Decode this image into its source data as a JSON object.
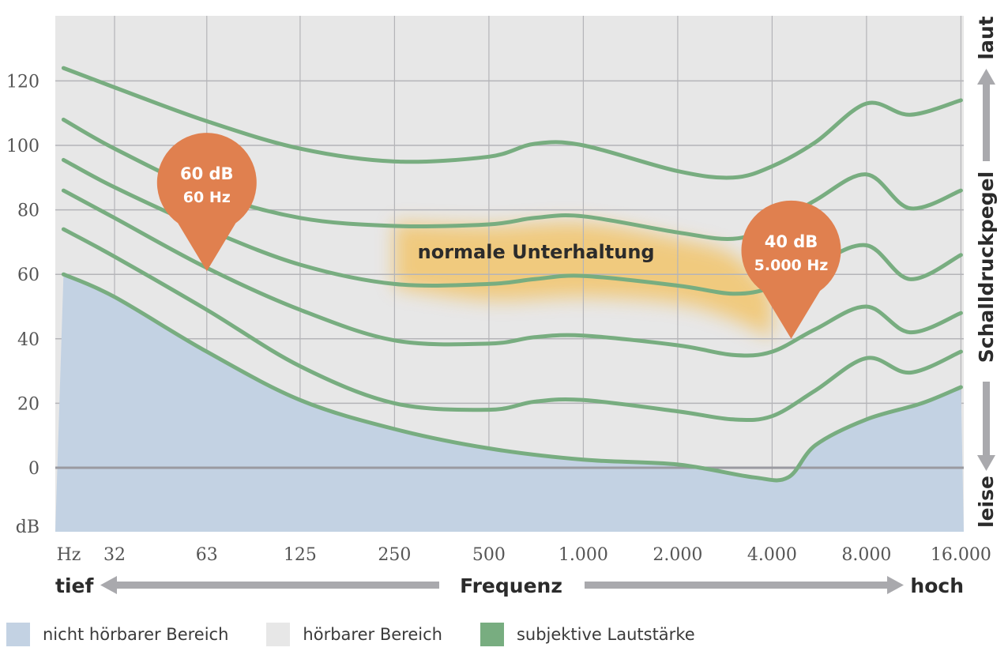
{
  "chart_data": {
    "type": "line",
    "x_scale": "log2",
    "x_ticks": [
      32,
      63,
      125,
      250,
      500,
      1000,
      2000,
      4000,
      8000,
      16000
    ],
    "x_tick_labels": [
      "32",
      "63",
      "125",
      "250",
      "500",
      "1.000",
      "2.000",
      "4.000",
      "8.000",
      "16.000"
    ],
    "x_unit": "Hz",
    "y_unit": "dB",
    "y_ticks": [
      0,
      20,
      40,
      60,
      80,
      100,
      120
    ],
    "y_tick_labels": [
      "0",
      "20",
      "40",
      "60",
      "80",
      "100",
      "120"
    ],
    "ylim": [
      -20,
      140
    ],
    "xlim": [
      22,
      16000
    ],
    "xlabel": "Frequenz",
    "x_left_label": "tief",
    "x_right_label": "hoch",
    "ylabel": "Schalldruckpegel",
    "y_top_label": "laut",
    "y_bottom_label": "leise",
    "grid": true,
    "colors": {
      "audible": "#e7e7e7",
      "inaudible": "#c3d2e3",
      "curves": "#78ad80",
      "grid": "#b4b4b8",
      "zero_line": "#9a9aa0",
      "marker": "#e0804f",
      "conversation": "#f2c56c",
      "arrow": "#a9a9ad"
    },
    "threshold_curve": {
      "x": [
        22,
        32,
        63,
        125,
        250,
        500,
        1000,
        2000,
        3500,
        4500,
        5500,
        8000,
        12000,
        16000
      ],
      "y": [
        60,
        53,
        36,
        21,
        12,
        6,
        2.5,
        1,
        -3,
        -3,
        7,
        15,
        20,
        25
      ]
    },
    "series": [
      {
        "x": [
          22,
          32,
          63,
          125,
          250,
          500,
          700,
          1000,
          2000,
          3000,
          4000,
          5500,
          8000,
          11000,
          16000
        ],
        "y": [
          124,
          118,
          107.5,
          99,
          95,
          96.5,
          100.5,
          100,
          92,
          90,
          93.5,
          101,
          113,
          109.5,
          114
        ]
      },
      {
        "x": [
          22,
          32,
          63,
          125,
          250,
          500,
          700,
          1000,
          2000,
          3000,
          4000,
          5500,
          8000,
          11000,
          16000
        ],
        "y": [
          108,
          99,
          85.5,
          77.5,
          75,
          75.5,
          77.5,
          78,
          73,
          71,
          75,
          83,
          91,
          80.5,
          86
        ]
      },
      {
        "x": [
          22,
          32,
          63,
          125,
          250,
          500,
          700,
          1000,
          2000,
          3000,
          4000,
          5500,
          8000,
          11000,
          16000
        ],
        "y": [
          95.5,
          87,
          74,
          63,
          57,
          57,
          58.5,
          59.5,
          56.5,
          54,
          56,
          63,
          69,
          58.5,
          66
        ]
      },
      {
        "x": [
          22,
          32,
          63,
          125,
          250,
          500,
          700,
          1000,
          2000,
          3000,
          4000,
          5500,
          8000,
          11000,
          16000
        ],
        "y": [
          86,
          77.5,
          62,
          49,
          39.5,
          38.5,
          40.5,
          41,
          38,
          35,
          36,
          43,
          50,
          42,
          48
        ]
      },
      {
        "x": [
          22,
          32,
          63,
          125,
          250,
          500,
          700,
          1000,
          2000,
          3000,
          4000,
          5500,
          8000,
          11000,
          16000
        ],
        "y": [
          74,
          65.5,
          49,
          31.5,
          20,
          18,
          20.5,
          21,
          17.5,
          15,
          16,
          24,
          34,
          29.5,
          36
        ]
      }
    ],
    "conversation_region": {
      "label": "normale Unterhaltung",
      "upper": {
        "x": [
          250,
          500,
          1000,
          2000,
          3000,
          4000
        ],
        "y": [
          76,
          75,
          76,
          71,
          66,
          54
        ]
      },
      "lower": {
        "x": [
          250,
          500,
          1000,
          2000,
          3000,
          4000
        ],
        "y": [
          56,
          52,
          53,
          51,
          46,
          40
        ]
      }
    },
    "markers": [
      {
        "x": 63,
        "y": 61,
        "line1": "60 dB",
        "line2": "60 Hz"
      },
      {
        "x": 4600,
        "y": 40,
        "line1": "40 dB",
        "line2": "5.000 Hz"
      }
    ]
  },
  "legend": [
    {
      "label": "nicht hörbarer Bereich",
      "color": "#c3d2e3"
    },
    {
      "label": "hörbarer Bereich",
      "color": "#e7e7e7"
    },
    {
      "label": "subjektive Lautstärke",
      "color": "#78ad80"
    }
  ]
}
